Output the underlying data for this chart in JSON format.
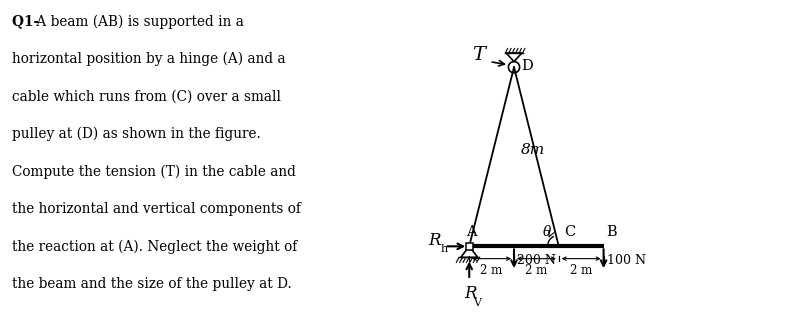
{
  "bg_color": "#ffffff",
  "text_color": "#000000",
  "question_lines": [
    [
      "Q1- ",
      " A beam (AB) is supported in a"
    ],
    [
      "",
      "horizontal position by a hinge (A) and a"
    ],
    [
      "",
      "cable which runs from (C) over a small"
    ],
    [
      "",
      "pulley at (D) as shown in the figure."
    ],
    [
      "",
      "Compute the tension (T) in the cable and"
    ],
    [
      "",
      "the horizontal and vertical components of"
    ],
    [
      "",
      "the reaction at (A). Neglect the weight of"
    ],
    [
      "",
      "the beam and the size of the pulley at D."
    ]
  ],
  "A": [
    2.0,
    0.0
  ],
  "B": [
    8.0,
    0.0
  ],
  "C": [
    6.0,
    0.0
  ],
  "D": [
    4.0,
    8.0
  ],
  "height_label": "8m",
  "dim_labels": [
    "2 m",
    "2 m",
    "2 m"
  ],
  "force_200N": "200 N",
  "force_100N": "100 N",
  "T_label": "T",
  "theta_label": "θ",
  "D_label": "D",
  "A_label": "A",
  "B_label": "B",
  "C_label": "C",
  "Rh_label": "R",
  "Rh_sub": "h",
  "Rv_label": "R",
  "Rv_sub": "V"
}
